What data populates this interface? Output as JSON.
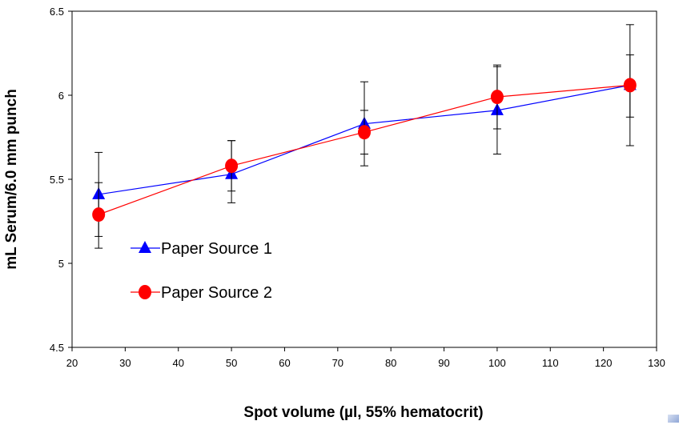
{
  "chart_data": {
    "type": "line",
    "xlabel": "Spot volume (µl, 55% hematocrit)",
    "ylabel": "mL Serum/6.0 mm punch",
    "xlim": [
      20,
      130
    ],
    "ylim": [
      4.5,
      6.5
    ],
    "x_ticks": [
      20,
      30,
      40,
      50,
      60,
      70,
      80,
      90,
      100,
      110,
      120,
      130
    ],
    "y_ticks": [
      4.5,
      5,
      5.5,
      6,
      6.5
    ],
    "x_tick_labels": [
      "20",
      "30",
      "40",
      "50",
      "60",
      "70",
      "80",
      "90",
      "100",
      "110",
      "120",
      "130"
    ],
    "y_tick_labels": [
      "4.5",
      "5",
      "5.5",
      "6",
      "6.5"
    ],
    "x": [
      25,
      50,
      75,
      100,
      125
    ],
    "grid": false,
    "legend_position": "left-inside",
    "series": [
      {
        "name": "Paper Source 1",
        "color": "#0000ff",
        "marker": "triangle",
        "values": [
          5.41,
          5.53,
          5.83,
          5.91,
          6.06
        ],
        "error_low": [
          5.16,
          5.36,
          5.65,
          5.65,
          5.7
        ],
        "error_high": [
          5.66,
          5.73,
          6.08,
          6.18,
          6.42
        ]
      },
      {
        "name": "Paper Source 2",
        "color": "#ff0000",
        "marker": "circle",
        "values": [
          5.29,
          5.58,
          5.78,
          5.99,
          6.06
        ],
        "error_low": [
          5.09,
          5.43,
          5.58,
          5.8,
          5.87
        ],
        "error_high": [
          5.48,
          5.73,
          5.91,
          6.17,
          6.24
        ]
      }
    ]
  }
}
